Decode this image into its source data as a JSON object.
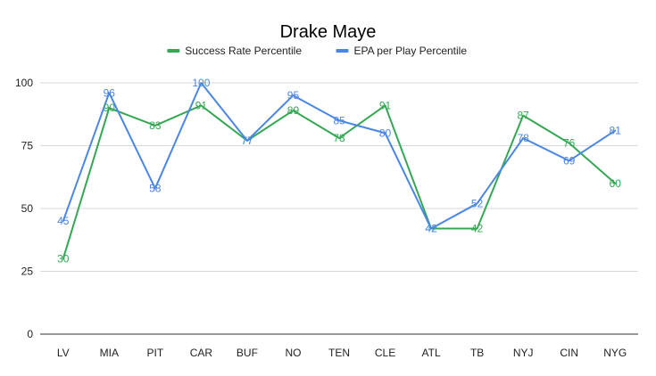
{
  "chart_data": {
    "type": "line",
    "title": "Drake Maye",
    "xlabel": "",
    "ylabel": "",
    "ylim": [
      0,
      100
    ],
    "yticks": [
      0,
      25,
      50,
      75,
      100
    ],
    "grid": true,
    "legend_position": "top",
    "categories": [
      "LV",
      "MIA",
      "PIT",
      "CAR",
      "BUF",
      "NO",
      "TEN",
      "CLE",
      "ATL",
      "TB",
      "NYJ",
      "CIN",
      "NYG"
    ],
    "series": [
      {
        "name": "Success Rate Percentile",
        "color": "#34a853",
        "values": [
          30,
          90,
          83,
          91,
          77,
          89,
          78,
          91,
          42,
          42,
          87,
          76,
          60
        ]
      },
      {
        "name": "EPA per Play Percentile",
        "color": "#4a86e8",
        "values": [
          45,
          96,
          58,
          100,
          77,
          95,
          85,
          80,
          42,
          52,
          78,
          69,
          81
        ]
      }
    ]
  }
}
